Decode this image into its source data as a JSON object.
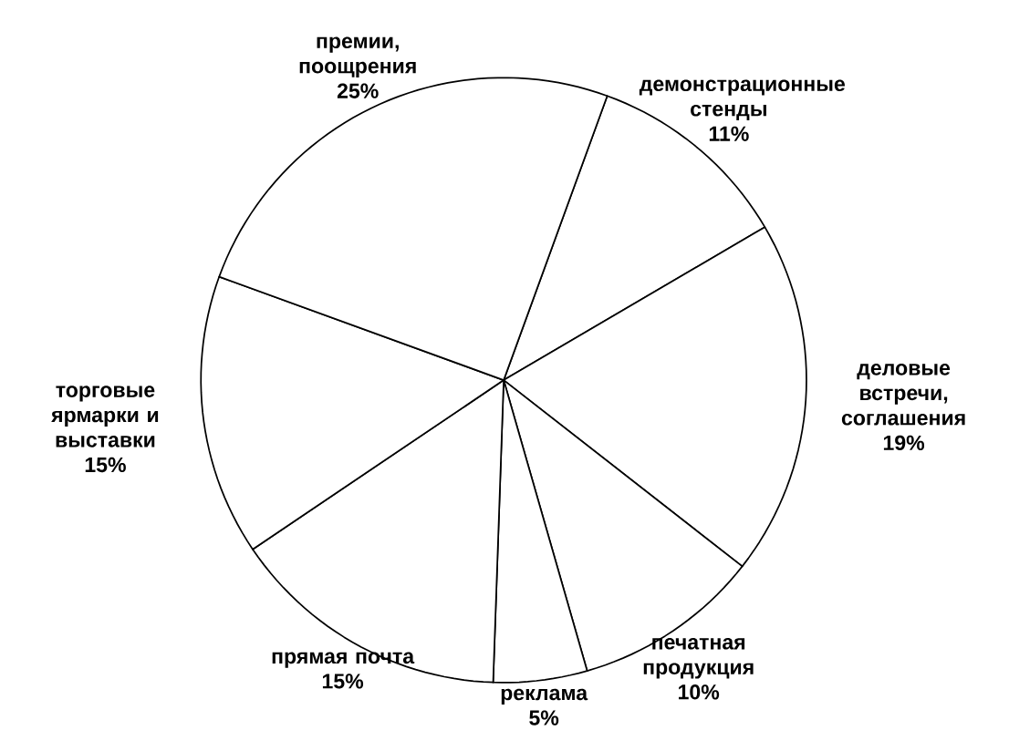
{
  "chart_data": {
    "type": "pie",
    "categories": [
      "демонстрационные стенды",
      "деловые встречи, соглашения",
      "печатная продукция",
      "реклама",
      "прямая почта",
      "торговые ярмарки и выставки",
      "премии, поощрения"
    ],
    "values": [
      11,
      19,
      10,
      5,
      15,
      15,
      25
    ],
    "value_labels": [
      "11%",
      "19%",
      "10%",
      "5%",
      "15%",
      "15%",
      "25%"
    ],
    "colors": [
      "#ffffff",
      "#ffffff",
      "#ffffff",
      "#ffffff",
      "#ffffff",
      "#ffffff",
      "#ffffff"
    ]
  }
}
